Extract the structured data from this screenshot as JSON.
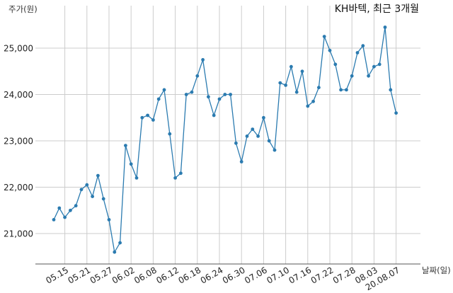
{
  "chart_data": {
    "type": "line",
    "title": "KH바텍, 최근 3개월",
    "ylabel": "주가(원)",
    "xlabel": "날짜(일)",
    "ylim": [
      20300,
      25800
    ],
    "yticks": [
      21000,
      22000,
      23000,
      24000,
      25000
    ],
    "ytick_labels": [
      "21,000",
      "22,000",
      "23,000",
      "24,000",
      "25,000"
    ],
    "xtick_labels": [
      "05.15",
      "05.21",
      "05.27",
      "06.02",
      "06.08",
      "06.12",
      "06.18",
      "06.24",
      "06.30",
      "07.06",
      "07.10",
      "07.16",
      "07.22",
      "07.28",
      "08.03",
      "20.08.07"
    ],
    "xtick_index": [
      2,
      6,
      10,
      14,
      18,
      22,
      26,
      30,
      34,
      38,
      42,
      46,
      50,
      54,
      58,
      62
    ],
    "grid": true,
    "series": [
      {
        "values": [
          21300,
          21550,
          21350,
          21500,
          21600,
          21950,
          22050,
          21800,
          22250,
          21750,
          21300,
          20600,
          20800,
          22900,
          22500,
          22200,
          23500,
          23550,
          23450,
          23900,
          24100,
          23150,
          22200,
          22300,
          24000,
          24050,
          24400,
          24750,
          23950,
          23550,
          23900,
          24000,
          24000,
          22950,
          22550,
          23100,
          23250,
          23100,
          23500,
          23000,
          22800,
          24250,
          24200,
          24600,
          24050,
          24500,
          23750,
          23850,
          24150,
          25250,
          24950,
          24650,
          24100,
          24100,
          24400,
          24900,
          25050,
          24400,
          24600,
          24650,
          25450,
          24100,
          23600
        ]
      }
    ]
  }
}
